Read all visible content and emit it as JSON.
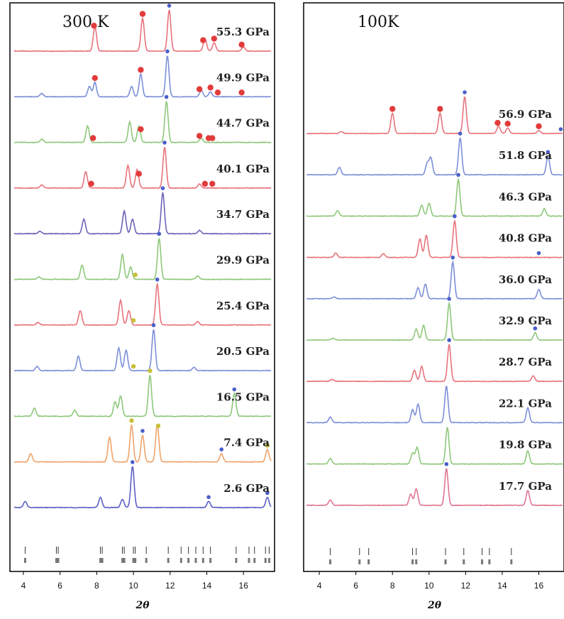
{
  "chart_data": [
    {
      "type": "line",
      "title": "300 K",
      "xlabel": "2θ",
      "xlim": [
        3.5,
        17.5
      ],
      "xticks": [
        4,
        6,
        8,
        10,
        12,
        14,
        16
      ],
      "series": [
        {
          "name": "55.3 GPa",
          "color": "#e8737c",
          "peaks": [
            [
              7.9,
              0.6
            ],
            [
              10.5,
              0.8
            ],
            [
              11.95,
              1.0
            ],
            [
              13.9,
              0.3
            ],
            [
              14.4,
              0.2
            ],
            [
              16.0,
              0.1
            ]
          ],
          "red_markers": [
            7.85,
            10.5,
            13.8,
            14.4,
            15.9
          ],
          "blue_markers": [
            11.95
          ]
        },
        {
          "name": "49.9 GPa",
          "color": "#7c8fd8",
          "peaks": [
            [
              5.0,
              0.08
            ],
            [
              7.6,
              0.25
            ],
            [
              7.9,
              0.35
            ],
            [
              9.9,
              0.25
            ],
            [
              10.4,
              0.55
            ],
            [
              11.85,
              1.0
            ],
            [
              13.7,
              0.15
            ],
            [
              14.2,
              0.12
            ]
          ],
          "red_markers": [
            7.9,
            10.4,
            13.6,
            14.2,
            14.6,
            15.9
          ],
          "blue_markers": [
            11.85
          ]
        },
        {
          "name": "44.7 GPa",
          "color": "#8ec77a",
          "peaks": [
            [
              5.0,
              0.08
            ],
            [
              7.5,
              0.4
            ],
            [
              9.8,
              0.5
            ],
            [
              10.3,
              0.4
            ],
            [
              11.8,
              1.0
            ],
            [
              13.7,
              0.1
            ]
          ],
          "red_markers": [
            7.8,
            10.4,
            13.6,
            14.1,
            14.3
          ],
          "blue_markers": [
            11.8
          ]
        },
        {
          "name": "40.1 GPa",
          "color": "#e8737c",
          "peaks": [
            [
              5.0,
              0.08
            ],
            [
              7.4,
              0.4
            ],
            [
              9.7,
              0.55
            ],
            [
              10.2,
              0.45
            ],
            [
              11.7,
              1.0
            ],
            [
              13.6,
              0.1
            ]
          ],
          "red_markers": [
            7.7,
            10.3,
            13.9,
            14.3
          ],
          "blue_markers": [
            11.7
          ]
        },
        {
          "name": "34.7 GPa",
          "color": "#6a63b8",
          "peaks": [
            [
              4.9,
              0.06
            ],
            [
              7.3,
              0.35
            ],
            [
              9.5,
              0.55
            ],
            [
              9.95,
              0.35
            ],
            [
              11.6,
              1.0
            ],
            [
              13.6,
              0.08
            ]
          ],
          "red_markers": [],
          "blue_markers": [
            11.6
          ]
        },
        {
          "name": "29.9 GPa",
          "color": "#8ec77a",
          "peaks": [
            [
              4.85,
              0.06
            ],
            [
              7.2,
              0.35
            ],
            [
              9.4,
              0.6
            ],
            [
              9.85,
              0.3
            ],
            [
              11.4,
              1.0
            ],
            [
              13.5,
              0.08
            ]
          ],
          "red_markers": [],
          "blue_markers": [
            11.4
          ],
          "yellow_markers": [
            10.1
          ]
        },
        {
          "name": "25.4 GPa",
          "color": "#e8737c",
          "peaks": [
            [
              4.8,
              0.06
            ],
            [
              7.1,
              0.35
            ],
            [
              9.3,
              0.6
            ],
            [
              9.75,
              0.35
            ],
            [
              11.3,
              1.0
            ],
            [
              13.5,
              0.08
            ]
          ],
          "red_markers": [],
          "blue_markers": [
            11.3
          ],
          "yellow_markers": [
            10.0
          ]
        },
        {
          "name": "20.5 GPa",
          "color": "#7c8fd8",
          "peaks": [
            [
              4.75,
              0.1
            ],
            [
              7.0,
              0.35
            ],
            [
              9.2,
              0.55
            ],
            [
              9.6,
              0.5
            ],
            [
              11.1,
              1.0
            ],
            [
              13.3,
              0.08
            ]
          ],
          "red_markers": [],
          "blue_markers": [
            11.1
          ],
          "yellow_markers": [
            10.0
          ]
        },
        {
          "name": "16.5 GPa",
          "color": "#8ec77a",
          "peaks": [
            [
              4.6,
              0.2
            ],
            [
              6.8,
              0.15
            ],
            [
              9.0,
              0.35
            ],
            [
              9.3,
              0.5
            ],
            [
              10.9,
              1.0
            ],
            [
              15.5,
              0.55
            ]
          ],
          "red_markers": [],
          "blue_markers": [
            10.9,
            15.5
          ],
          "yellow_markers": [
            10.9
          ]
        },
        {
          "name": "7.4 GPa",
          "color": "#f0a36a",
          "peaks": [
            [
              4.4,
              0.2
            ],
            [
              8.7,
              0.6
            ],
            [
              9.9,
              0.9
            ],
            [
              10.5,
              0.65
            ],
            [
              11.3,
              0.9
            ],
            [
              14.8,
              0.2
            ],
            [
              17.3,
              0.3
            ]
          ],
          "red_markers": [],
          "blue_markers": [
            10.5,
            14.8
          ],
          "yellow_markers": [
            9.9,
            11.35,
            17.3
          ]
        },
        {
          "name": "2.6 GPa",
          "color": "#5b5fc7",
          "peaks": [
            [
              4.1,
              0.15
            ],
            [
              8.2,
              0.25
            ],
            [
              9.4,
              0.2
            ],
            [
              9.95,
              1.0
            ],
            [
              14.1,
              0.15
            ],
            [
              17.3,
              0.25
            ]
          ],
          "red_markers": [],
          "blue_markers": [
            9.95,
            14.1,
            17.3
          ]
        }
      ],
      "hkl_ticks": [
        4.1,
        5.8,
        5.9,
        8.2,
        8.3,
        9.4,
        9.5,
        10.0,
        10.1,
        10.7,
        11.9,
        12.6,
        13.0,
        13.4,
        13.8,
        14.2,
        15.6,
        16.3,
        16.6,
        17.2,
        17.4
      ]
    },
    {
      "type": "line",
      "title": "100K",
      "xlabel": "2θ",
      "xlim": [
        3.3,
        17.3
      ],
      "xticks": [
        4,
        6,
        8,
        10,
        12,
        14,
        16
      ],
      "series": [
        {
          "name": "56.9 GPa",
          "color": "#e8737c",
          "peaks": [
            [
              5.2,
              0.05
            ],
            [
              8.0,
              0.55
            ],
            [
              10.6,
              0.55
            ],
            [
              11.95,
              1.0
            ],
            [
              13.8,
              0.2
            ],
            [
              14.3,
              0.15
            ],
            [
              16.0,
              0.08
            ]
          ],
          "red_markers": [
            8.0,
            10.6,
            13.75,
            14.3,
            16.0
          ],
          "blue_markers": [
            11.95,
            17.2
          ]
        },
        {
          "name": "51.8 GPa",
          "color": "#7c8fd8",
          "peaks": [
            [
              5.1,
              0.2
            ],
            [
              9.9,
              0.3
            ],
            [
              10.1,
              0.45
            ],
            [
              11.7,
              1.0
            ],
            [
              16.5,
              0.5
            ]
          ],
          "red_markers": [],
          "blue_markers": [
            11.7,
            16.5
          ]
        },
        {
          "name": "46.3 GPa",
          "color": "#8ec77a",
          "peaks": [
            [
              5.0,
              0.15
            ],
            [
              9.6,
              0.3
            ],
            [
              10.0,
              0.35
            ],
            [
              11.6,
              1.0
            ],
            [
              16.3,
              0.2
            ]
          ],
          "red_markers": [],
          "blue_markers": [
            11.6
          ]
        },
        {
          "name": "40.8 GPa",
          "color": "#e8737c",
          "peaks": [
            [
              4.9,
              0.12
            ],
            [
              7.5,
              0.1
            ],
            [
              9.5,
              0.5
            ],
            [
              9.85,
              0.6
            ],
            [
              11.4,
              1.0
            ]
          ],
          "red_markers": [],
          "blue_markers": [
            11.4,
            16.0
          ]
        },
        {
          "name": "36.0 GPa",
          "color": "#7c8fd8",
          "peaks": [
            [
              4.8,
              0.05
            ],
            [
              9.4,
              0.3
            ],
            [
              9.8,
              0.4
            ],
            [
              11.3,
              1.0
            ],
            [
              16.0,
              0.25
            ]
          ],
          "red_markers": [],
          "blue_markers": [
            11.3
          ]
        },
        {
          "name": "32.9 GPa",
          "color": "#8ec77a",
          "peaks": [
            [
              4.75,
              0.05
            ],
            [
              9.3,
              0.3
            ],
            [
              9.7,
              0.4
            ],
            [
              11.1,
              1.0
            ],
            [
              15.8,
              0.2
            ]
          ],
          "red_markers": [],
          "blue_markers": [
            11.1,
            15.8
          ]
        },
        {
          "name": "28.7 GPa",
          "color": "#e8737c",
          "peaks": [
            [
              4.7,
              0.05
            ],
            [
              9.2,
              0.3
            ],
            [
              9.6,
              0.4
            ],
            [
              11.1,
              1.0
            ],
            [
              15.7,
              0.15
            ]
          ],
          "red_markers": [],
          "blue_markers": [
            11.1
          ]
        },
        {
          "name": "22.1 GPa",
          "color": "#7c8fd8",
          "peaks": [
            [
              4.6,
              0.15
            ],
            [
              9.1,
              0.35
            ],
            [
              9.4,
              0.5
            ],
            [
              10.95,
              1.0
            ],
            [
              15.4,
              0.4
            ]
          ],
          "red_markers": [],
          "blue_markers": []
        },
        {
          "name": "19.8 GPa",
          "color": "#8ec77a",
          "peaks": [
            [
              4.6,
              0.15
            ],
            [
              9.1,
              0.3
            ],
            [
              9.35,
              0.45
            ],
            [
              11.0,
              1.0
            ],
            [
              15.4,
              0.35
            ]
          ],
          "red_markers": [],
          "blue_markers": []
        },
        {
          "name": "17.7 GPa",
          "color": "#e07590",
          "peaks": [
            [
              4.6,
              0.15
            ],
            [
              9.0,
              0.3
            ],
            [
              9.3,
              0.45
            ],
            [
              10.95,
              1.0
            ],
            [
              15.4,
              0.4
            ]
          ],
          "red_markers": [],
          "blue_markers": [
            10.95
          ]
        }
      ],
      "hkl_ticks": [
        4.6,
        6.2,
        6.7,
        9.1,
        9.3,
        10.9,
        11.9,
        12.9,
        13.3,
        14.5
      ]
    }
  ]
}
